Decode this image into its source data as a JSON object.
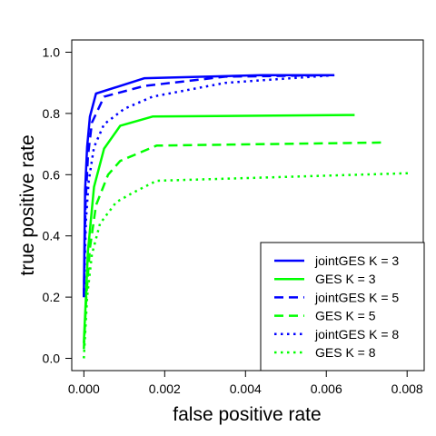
{
  "chart_data": {
    "type": "line",
    "xlabel": "false positive rate",
    "ylabel": "true positive rate",
    "xlim": [
      -0.0003,
      0.0084
    ],
    "ylim": [
      -0.04,
      1.04
    ],
    "x_ticks": [
      "0.000",
      "0.002",
      "0.004",
      "0.006",
      "0.008"
    ],
    "y_ticks": [
      "0.0",
      "0.2",
      "0.4",
      "0.6",
      "0.8",
      "1.0"
    ],
    "grid": false,
    "legend_position": "bottom-right",
    "series": [
      {
        "name": "jointGES K = 3",
        "color": "#0000ff",
        "dash": "solid",
        "points": [
          [
            0.0,
            0.2
          ],
          [
            3e-05,
            0.55
          ],
          [
            8e-05,
            0.69
          ],
          [
            0.00015,
            0.79
          ],
          [
            0.0003,
            0.865
          ],
          [
            0.0015,
            0.915
          ],
          [
            0.0044,
            0.925
          ],
          [
            0.0062,
            0.925
          ]
        ]
      },
      {
        "name": "GES K = 3",
        "color": "#00ff00",
        "dash": "solid",
        "points": [
          [
            0.0,
            0.05
          ],
          [
            5e-05,
            0.2
          ],
          [
            0.0001,
            0.35
          ],
          [
            0.00025,
            0.56
          ],
          [
            0.0005,
            0.685
          ],
          [
            0.0009,
            0.76
          ],
          [
            0.0017,
            0.79
          ],
          [
            0.0067,
            0.795
          ]
        ]
      },
      {
        "name": "jointGES K = 5",
        "color": "#0000ff",
        "dash": "dashed",
        "points": [
          [
            0.0,
            0.2
          ],
          [
            4e-05,
            0.5
          ],
          [
            0.0001,
            0.66
          ],
          [
            0.0002,
            0.77
          ],
          [
            0.0005,
            0.855
          ],
          [
            0.0015,
            0.89
          ],
          [
            0.0035,
            0.92
          ],
          [
            0.0062,
            0.925
          ]
        ]
      },
      {
        "name": "GES K = 5",
        "color": "#00ff00",
        "dash": "dashed",
        "points": [
          [
            0.0,
            0.03
          ],
          [
            6e-05,
            0.2
          ],
          [
            0.00015,
            0.36
          ],
          [
            0.0003,
            0.5
          ],
          [
            0.0006,
            0.6
          ],
          [
            0.0009,
            0.645
          ],
          [
            0.0018,
            0.695
          ],
          [
            0.0074,
            0.705
          ]
        ]
      },
      {
        "name": "jointGES K = 8",
        "color": "#0000ff",
        "dash": "dotted",
        "points": [
          [
            0.0,
            0.2
          ],
          [
            5e-05,
            0.45
          ],
          [
            0.00012,
            0.58
          ],
          [
            0.00025,
            0.69
          ],
          [
            0.0005,
            0.765
          ],
          [
            0.001,
            0.815
          ],
          [
            0.0017,
            0.855
          ],
          [
            0.0035,
            0.9
          ],
          [
            0.0062,
            0.925
          ]
        ]
      },
      {
        "name": "GES K = 8",
        "color": "#00ff00",
        "dash": "dotted",
        "points": [
          [
            0.0,
            0.0
          ],
          [
            8e-05,
            0.2
          ],
          [
            0.0002,
            0.34
          ],
          [
            0.0004,
            0.44
          ],
          [
            0.0008,
            0.51
          ],
          [
            0.0012,
            0.54
          ],
          [
            0.0018,
            0.58
          ],
          [
            0.0081,
            0.605
          ]
        ]
      }
    ]
  }
}
